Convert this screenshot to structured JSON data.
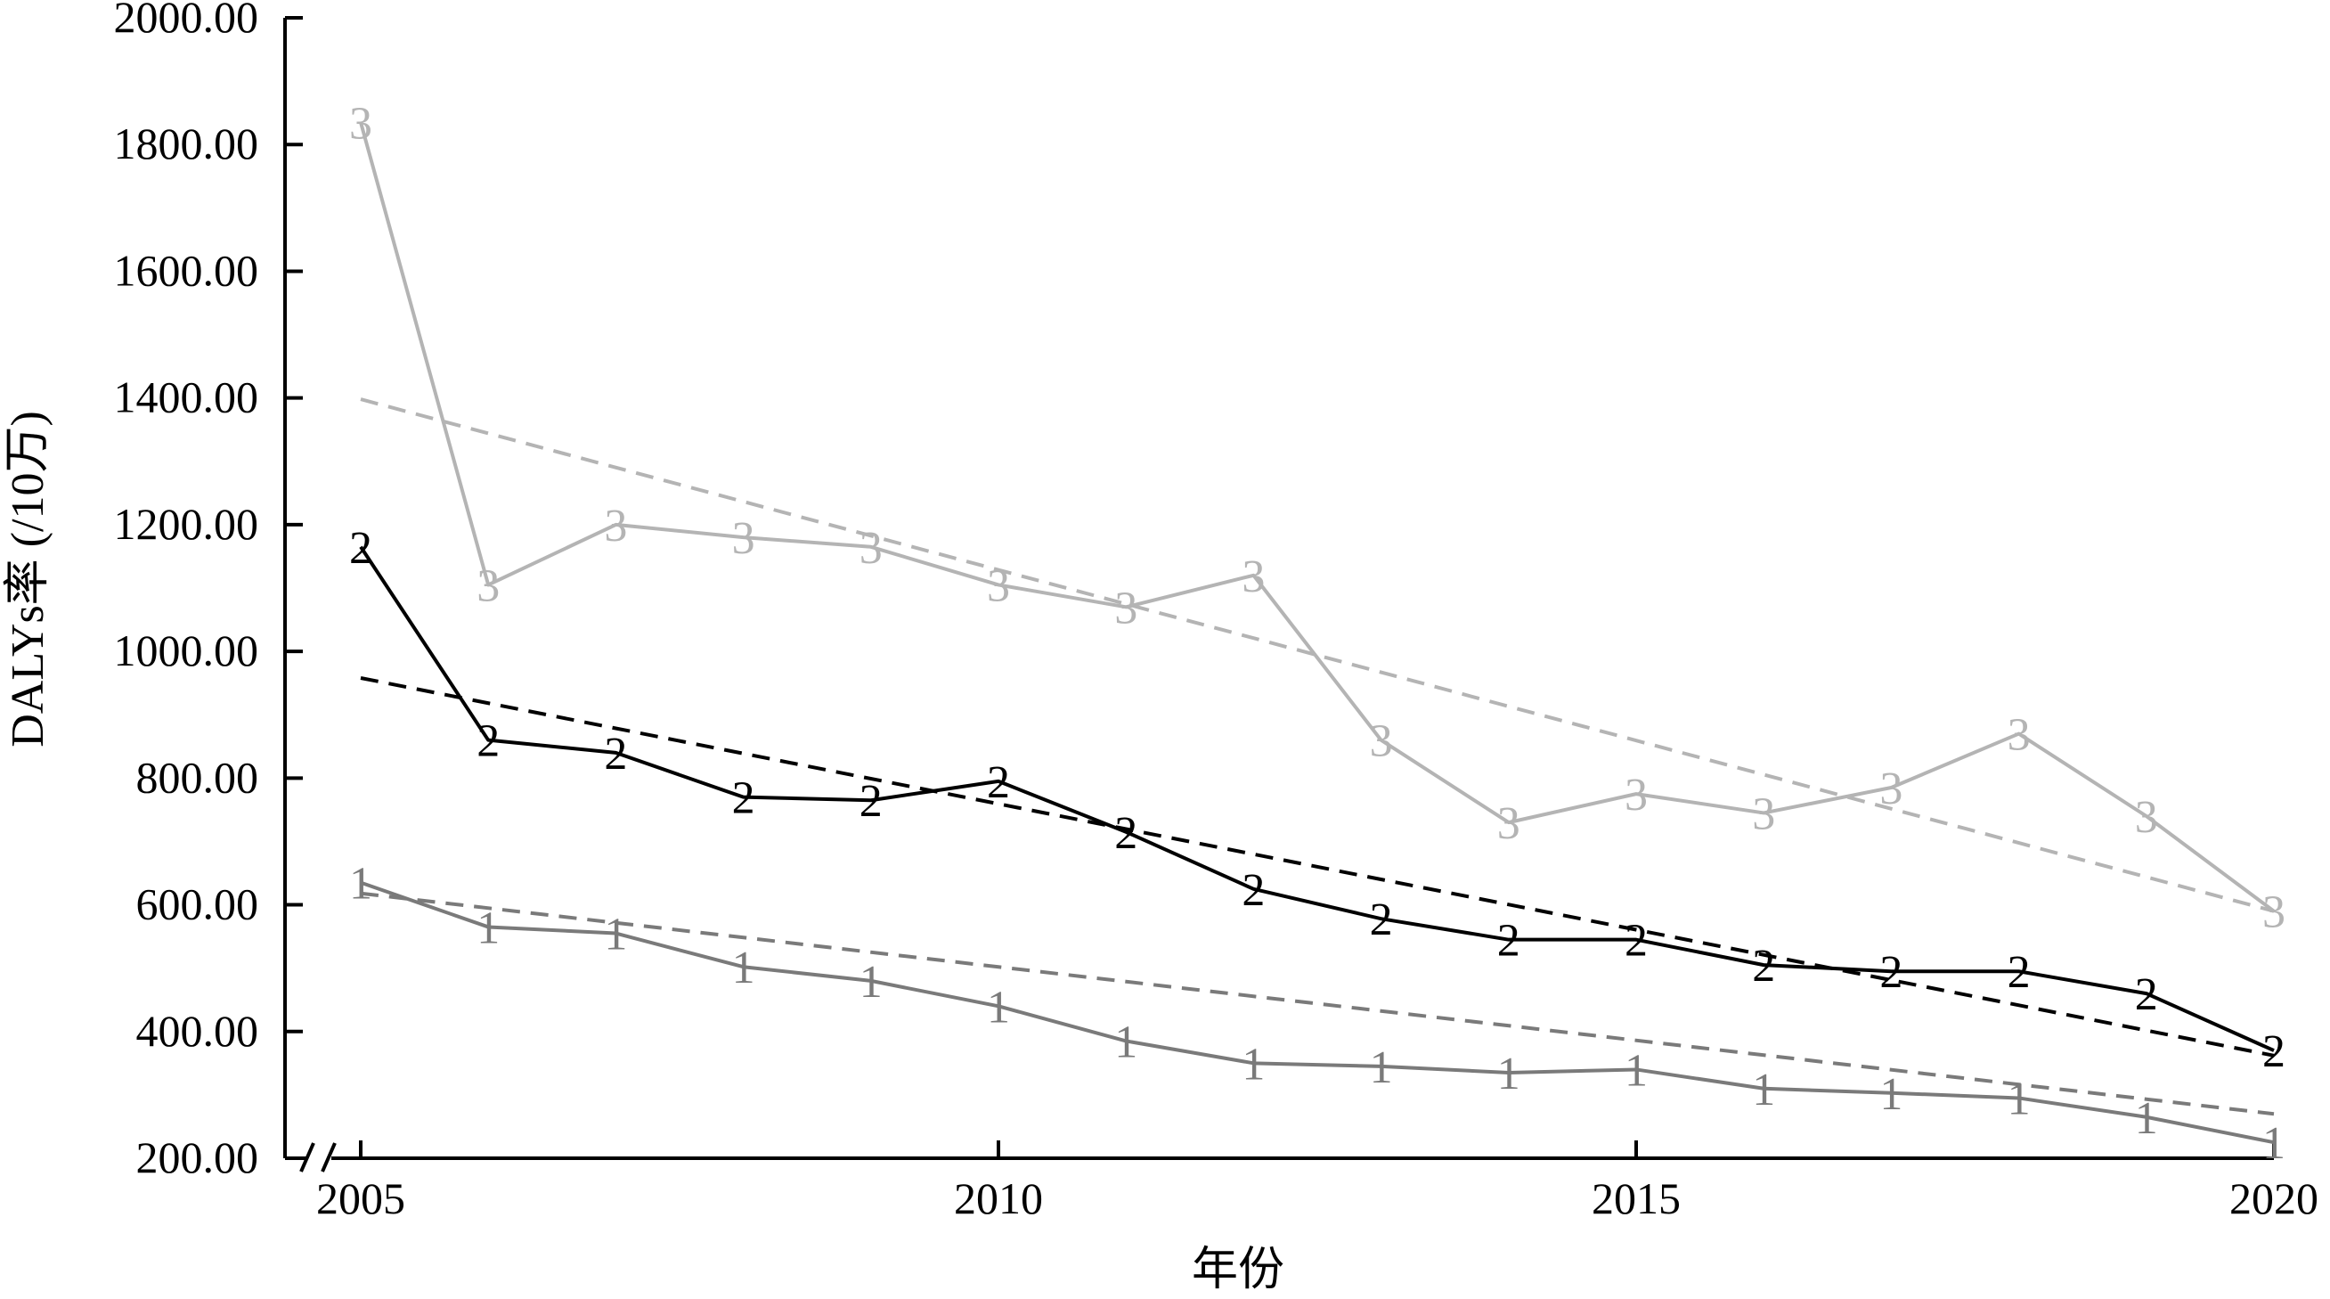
{
  "chart_data": {
    "type": "line",
    "xlabel": "年份",
    "ylabel": "DALYs率 (/10万)",
    "xlim": [
      2005,
      2020
    ],
    "ylim": [
      200,
      2000
    ],
    "x_ticks": [
      "2005",
      "2010",
      "2015",
      "2020"
    ],
    "y_ticks": [
      "200.00",
      "400.00",
      "600.00",
      "800.00",
      "1000.00",
      "1200.00",
      "1400.00",
      "1600.00",
      "1800.00",
      "2000.00"
    ],
    "axis_break": true,
    "grid": false,
    "x": [
      2005,
      2006,
      2007,
      2008,
      2009,
      2010,
      2011,
      2012,
      2013,
      2014,
      2015,
      2016,
      2017,
      2018,
      2019,
      2020
    ],
    "series": [
      {
        "marker": "1",
        "color": "#7a7a7a",
        "values": [
          635,
          565,
          555,
          502,
          480,
          440,
          385,
          350,
          345,
          335,
          340,
          310,
          303,
          295,
          265,
          225
        ],
        "trend": [
          618,
          270
        ]
      },
      {
        "marker": "2",
        "color": "#000000",
        "values": [
          1165,
          860,
          840,
          770,
          765,
          795,
          715,
          625,
          578,
          545,
          545,
          505,
          495,
          495,
          460,
          370
        ],
        "trend": [
          958,
          362
        ]
      },
      {
        "marker": "3",
        "color": "#b4b4b4",
        "values": [
          1835,
          1105,
          1200,
          1180,
          1165,
          1105,
          1070,
          1120,
          860,
          730,
          775,
          745,
          785,
          870,
          740,
          590
        ],
        "trend": [
          1398,
          590
        ]
      }
    ]
  }
}
